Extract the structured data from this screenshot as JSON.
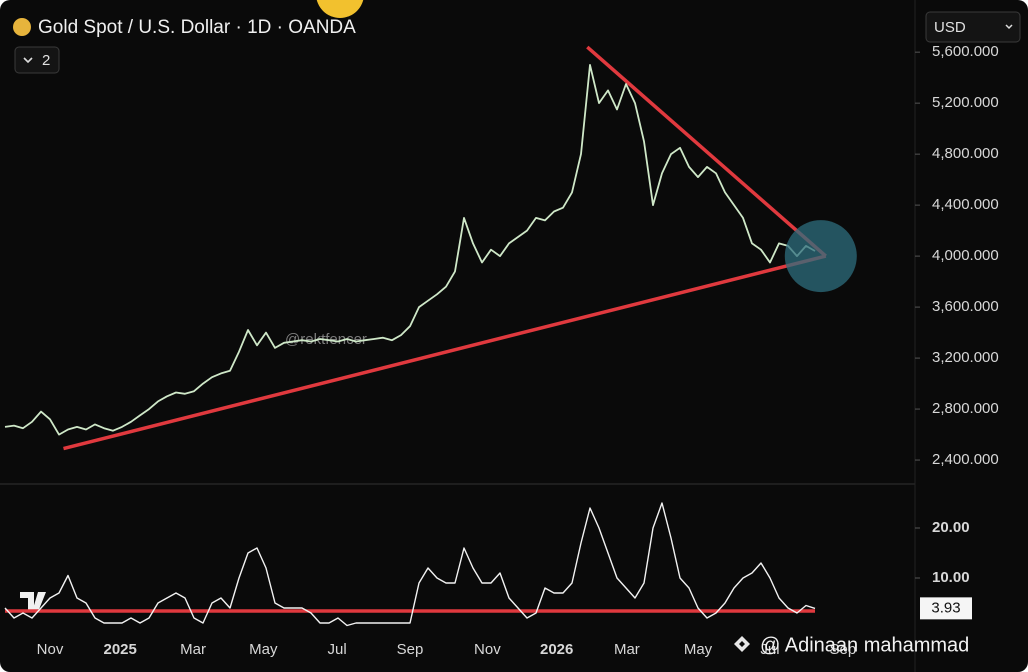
{
  "header": {
    "title": "Gold Spot / U.S. Dollar · 1D · OANDA",
    "interval_count": "2",
    "currency": "USD"
  },
  "watermarks": [
    "@rektfencer",
    "@ Adinaan mahammad"
  ],
  "chart_data": [
    {
      "type": "line",
      "series": [
        {
          "name": "Gold Spot / U.S. Dollar",
          "color": "#cfe8c8",
          "values": [
            2660,
            2670,
            2650,
            2700,
            2780,
            2720,
            2600,
            2640,
            2660,
            2640,
            2680,
            2650,
            2630,
            2660,
            2700,
            2750,
            2800,
            2860,
            2900,
            2930,
            2920,
            2940,
            3000,
            3050,
            3080,
            3100,
            3250,
            3420,
            3300,
            3400,
            3280,
            3320,
            3330,
            3340,
            3330,
            3350,
            3340,
            3330,
            3350,
            3330,
            3340,
            3350,
            3360,
            3340,
            3380,
            3450,
            3600,
            3650,
            3700,
            3760,
            3880,
            4300,
            4100,
            3950,
            4050,
            4000,
            4100,
            4150,
            4200,
            4300,
            4280,
            4350,
            4380,
            4500,
            4800,
            5500,
            5200,
            5300,
            5150,
            5350,
            5200,
            4900,
            4400,
            4650,
            4800,
            4850,
            4700,
            4620,
            4700,
            4650,
            4500,
            4400,
            4300,
            4100,
            4050,
            3950,
            4100,
            4080,
            4000,
            4080,
            4040
          ]
        }
      ],
      "trendlines": [
        {
          "color": "#e0393e",
          "x": [
            6.5,
            91.2
          ],
          "values": [
            2490,
            4000
          ]
        },
        {
          "color": "#e0393e",
          "x": [
            64.7,
            91.2
          ],
          "values": [
            5640,
            4000
          ]
        }
      ],
      "xlim": [
        0,
        101
      ],
      "ylim": [
        2220,
        5970
      ],
      "yticks": [
        {
          "value": 2400,
          "label": "2,400.000"
        },
        {
          "value": 2800,
          "label": "2,800.000"
        },
        {
          "value": 3200,
          "label": "3,200.000"
        },
        {
          "value": 3600,
          "label": "3,600.000"
        },
        {
          "value": 4000,
          "label": "4,000.000"
        },
        {
          "value": 4400,
          "label": "4,400.000"
        },
        {
          "value": 4800,
          "label": "4,800.000"
        },
        {
          "value": 5200,
          "label": "5,200.000"
        },
        {
          "value": 5600,
          "label": "5,600.000"
        }
      ],
      "grid": false
    },
    {
      "type": "line",
      "series": [
        {
          "name": "Indicator",
          "color": "#f2f2f2",
          "values": [
            4,
            2,
            3,
            2,
            4,
            6,
            7,
            10.5,
            6,
            5,
            2,
            1,
            1,
            1,
            2,
            1,
            2,
            5,
            6,
            7,
            6,
            2,
            1,
            5,
            6,
            4,
            10,
            15,
            16,
            12,
            5,
            4,
            4,
            4,
            3,
            1,
            1,
            2,
            0.5,
            1,
            1,
            1,
            1,
            1,
            1,
            1,
            9,
            12,
            10,
            9,
            9,
            16,
            12,
            9,
            9,
            11,
            6,
            4,
            2,
            3,
            8,
            7,
            7,
            9,
            17,
            24,
            20,
            15,
            10,
            8,
            6,
            9,
            20,
            25,
            18,
            10,
            8,
            4,
            2,
            3,
            5,
            8,
            10,
            11,
            13,
            10,
            6,
            4,
            3,
            4.5,
            3.93
          ]
        }
      ],
      "trendlines": [
        {
          "color": "#e0393e",
          "x": [
            0,
            90
          ],
          "values": [
            3.4,
            3.4
          ]
        }
      ],
      "xlim": [
        0,
        101
      ],
      "ylim": [
        -0.4,
        28.6
      ],
      "yticks": [
        {
          "value": 10,
          "label": "10.00"
        },
        {
          "value": 20,
          "label": "20.00"
        }
      ],
      "xticks": [
        {
          "value": 5,
          "label": "Nov"
        },
        {
          "value": 12.8,
          "label": "2025"
        },
        {
          "value": 20.9,
          "label": "Mar"
        },
        {
          "value": 28.7,
          "label": "May"
        },
        {
          "value": 36.9,
          "label": "Jul"
        },
        {
          "value": 45,
          "label": "Sep"
        },
        {
          "value": 53.6,
          "label": "Nov"
        },
        {
          "value": 61.3,
          "label": "2026"
        },
        {
          "value": 69.1,
          "label": "Mar"
        },
        {
          "value": 77,
          "label": "May"
        },
        {
          "value": 85,
          "label": "Jul"
        },
        {
          "value": 93.1,
          "label": "Sep"
        }
      ],
      "grid": false
    }
  ]
}
